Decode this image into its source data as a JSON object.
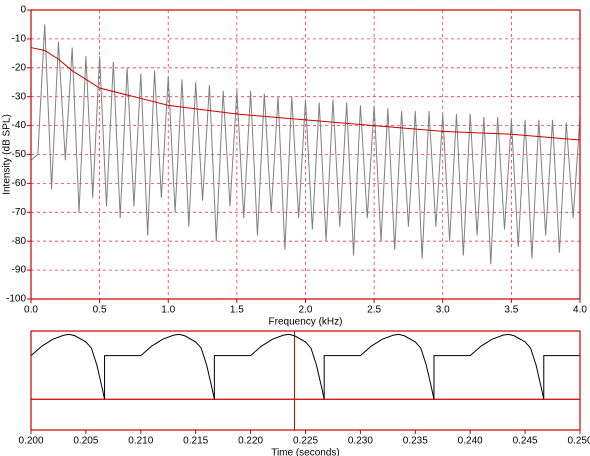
{
  "chart_data": [
    {
      "type": "line",
      "xlabel": "Frequency (kHz)",
      "ylabel": "Intensity (dB SPL)",
      "xlim": [
        0,
        4
      ],
      "ylim": [
        -100,
        0
      ],
      "xticks": [
        {
          "value": 0,
          "label": "0.0"
        },
        {
          "value": 0.5,
          "label": "0.5"
        },
        {
          "value": 1,
          "label": "1.0"
        },
        {
          "value": 1.5,
          "label": "1.5"
        },
        {
          "value": 2,
          "label": "2.0"
        },
        {
          "value": 2.5,
          "label": "2.5"
        },
        {
          "value": 3,
          "label": "3.0"
        },
        {
          "value": 3.5,
          "label": "3.5"
        },
        {
          "value": 4,
          "label": "4.0"
        }
      ],
      "yticks": [
        0,
        -10,
        -20,
        -30,
        -40,
        -50,
        -60,
        -70,
        -80,
        -90,
        -100
      ],
      "grid": true,
      "series": [
        {
          "color": "#808080",
          "x": [
            0,
            0.05,
            0.1,
            0.15,
            0.2,
            0.25,
            0.3,
            0.35,
            0.4,
            0.45,
            0.5,
            0.55,
            0.6,
            0.65,
            0.7,
            0.75,
            0.8,
            0.85,
            0.9,
            0.95,
            1,
            1.05,
            1.1,
            1.15,
            1.2,
            1.25,
            1.3,
            1.35,
            1.4,
            1.45,
            1.5,
            1.55,
            1.6,
            1.65,
            1.7,
            1.75,
            1.8,
            1.85,
            1.9,
            1.95,
            2,
            2.05,
            2.1,
            2.15,
            2.2,
            2.25,
            2.3,
            2.35,
            2.4,
            2.45,
            2.5,
            2.55,
            2.6,
            2.65,
            2.7,
            2.75,
            2.8,
            2.85,
            2.9,
            2.95,
            3,
            3.05,
            3.1,
            3.15,
            3.2,
            3.25,
            3.3,
            3.35,
            3.4,
            3.45,
            3.5,
            3.55,
            3.6,
            3.65,
            3.7,
            3.75,
            3.8,
            3.85,
            3.9,
            3.95,
            4
          ],
          "values": [
            -52,
            -50,
            -5,
            -62,
            -11,
            -52,
            -13,
            -70,
            -16,
            -65,
            -16,
            -68,
            -18,
            -72,
            -20,
            -68,
            -22,
            -78,
            -21,
            -65,
            -23,
            -70,
            -24,
            -75,
            -25,
            -66,
            -26,
            -80,
            -28,
            -68,
            -28,
            -72,
            -28,
            -78,
            -29,
            -70,
            -30,
            -83,
            -30,
            -72,
            -31,
            -76,
            -32,
            -80,
            -31,
            -75,
            -32,
            -85,
            -33,
            -72,
            -33,
            -80,
            -34,
            -83,
            -35,
            -75,
            -35,
            -86,
            -35,
            -75,
            -36,
            -80,
            -36,
            -85,
            -36,
            -78,
            -37,
            -88,
            -37,
            -76,
            -38,
            -82,
            -38,
            -86,
            -38,
            -78,
            -38,
            -84,
            -39,
            -72,
            -37
          ]
        },
        {
          "color": "#cc0000",
          "x": [
            0,
            0.1,
            0.2,
            0.3,
            0.5,
            0.75,
            1,
            1.5,
            2,
            2.5,
            3,
            3.5,
            4
          ],
          "values": [
            -13,
            -14,
            -17,
            -21,
            -27,
            -30,
            -33,
            -36,
            -38,
            -40,
            -42,
            -43,
            -45
          ]
        }
      ]
    },
    {
      "type": "line",
      "xlabel": "Time (seconds)",
      "xlim": [
        0.2,
        0.25
      ],
      "ylim": [
        -0.45,
        1
      ],
      "xticks": [
        {
          "value": 0.2,
          "label": "0.200"
        },
        {
          "value": 0.205,
          "label": "0.205"
        },
        {
          "value": 0.21,
          "label": "0.210"
        },
        {
          "value": 0.215,
          "label": "0.215"
        },
        {
          "value": 0.22,
          "label": "0.220"
        },
        {
          "value": 0.225,
          "label": "0.225"
        },
        {
          "value": 0.23,
          "label": "0.230"
        },
        {
          "value": 0.235,
          "label": "0.235"
        },
        {
          "value": 0.24,
          "label": "0.240"
        },
        {
          "value": 0.245,
          "label": "0.245"
        },
        {
          "value": 0.25,
          "label": "0.250"
        }
      ],
      "grid": false,
      "cursor_x": 0.224,
      "series": [
        {
          "color": "#000000",
          "x": [
            0.2,
            0.201,
            0.202,
            0.203,
            0.2035,
            0.204,
            0.205,
            0.2055,
            0.206,
            0.2065,
            0.2067,
            0.2067,
            0.21,
            0.211,
            0.212,
            0.213,
            0.2135,
            0.214,
            0.215,
            0.2155,
            0.216,
            0.2165,
            0.2167,
            0.2167,
            0.22,
            0.221,
            0.222,
            0.223,
            0.2235,
            0.224,
            0.225,
            0.2255,
            0.226,
            0.2265,
            0.2267,
            0.2267,
            0.23,
            0.231,
            0.232,
            0.233,
            0.2335,
            0.234,
            0.235,
            0.2355,
            0.236,
            0.2365,
            0.2367,
            0.2367,
            0.24,
            0.241,
            0.242,
            0.243,
            0.2435,
            0.244,
            0.245,
            0.2455,
            0.246,
            0.2465,
            0.2467,
            0.2467,
            0.25
          ],
          "values": [
            0.64,
            0.78,
            0.88,
            0.94,
            0.95,
            0.93,
            0.84,
            0.75,
            0.5,
            0.15,
            0,
            0.64,
            0.64,
            0.78,
            0.88,
            0.94,
            0.95,
            0.93,
            0.84,
            0.75,
            0.5,
            0.15,
            0,
            0.64,
            0.64,
            0.78,
            0.88,
            0.94,
            0.95,
            0.93,
            0.84,
            0.75,
            0.5,
            0.15,
            0,
            0.64,
            0.64,
            0.78,
            0.88,
            0.94,
            0.95,
            0.93,
            0.84,
            0.75,
            0.5,
            0.15,
            0,
            0.64,
            0.64,
            0.78,
            0.88,
            0.94,
            0.95,
            0.93,
            0.84,
            0.75,
            0.5,
            0.15,
            0,
            0.64,
            0.64
          ]
        }
      ]
    }
  ]
}
